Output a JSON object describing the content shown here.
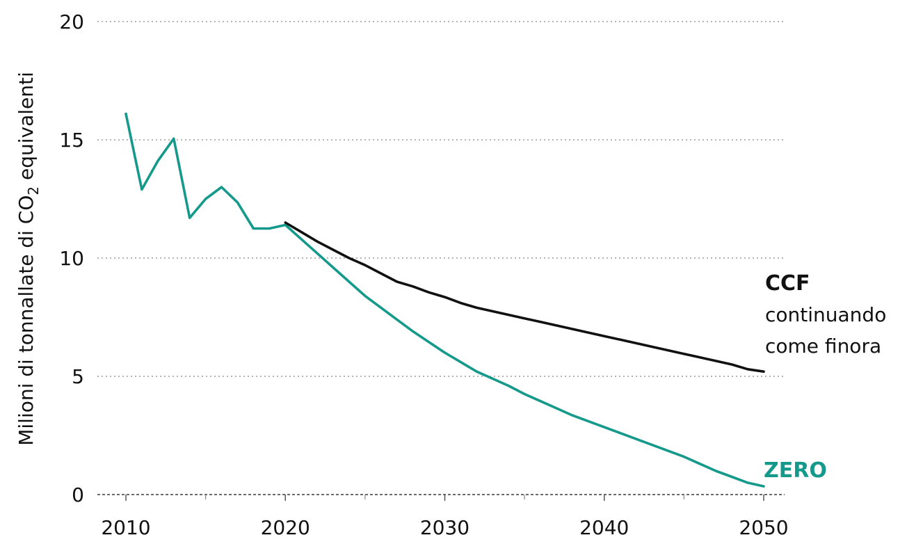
{
  "chart_data": {
    "type": "line",
    "ylabel_pre": "Milioni di tonnallate di CO",
    "ylabel_sub": "2",
    "ylabel_post": " equivalenti",
    "xlabel": "",
    "xlim": [
      2010,
      2050
    ],
    "ylim": [
      0,
      20
    ],
    "x_ticks": [
      2010,
      2020,
      2030,
      2040,
      2050
    ],
    "x_minor_ticks": [
      2015,
      2025,
      2035,
      2045
    ],
    "y_ticks": [
      0,
      5,
      10,
      15,
      20
    ],
    "grid": "horizontal dotted",
    "series": [
      {
        "name": "CCF",
        "description_lines": [
          "continuando",
          "come finora"
        ],
        "color": "#111111",
        "x": [
          2020,
          2021,
          2022,
          2023,
          2024,
          2025,
          2026,
          2027,
          2028,
          2029,
          2030,
          2031,
          2032,
          2033,
          2034,
          2035,
          2036,
          2037,
          2038,
          2039,
          2040,
          2041,
          2042,
          2043,
          2044,
          2045,
          2046,
          2047,
          2048,
          2049,
          2050
        ],
        "values": [
          11.5,
          11.1,
          10.7,
          10.35,
          10.0,
          9.7,
          9.35,
          9.0,
          8.8,
          8.55,
          8.35,
          8.1,
          7.9,
          7.75,
          7.6,
          7.45,
          7.3,
          7.15,
          7.0,
          6.85,
          6.7,
          6.55,
          6.4,
          6.25,
          6.1,
          5.95,
          5.8,
          5.65,
          5.5,
          5.3,
          5.2
        ]
      },
      {
        "name": "ZERO",
        "color": "#14998a",
        "x": [
          2010,
          2011,
          2012,
          2013,
          2014,
          2015,
          2016,
          2017,
          2018,
          2019,
          2020,
          2021,
          2022,
          2023,
          2024,
          2025,
          2026,
          2027,
          2028,
          2029,
          2030,
          2031,
          2032,
          2033,
          2034,
          2035,
          2036,
          2037,
          2038,
          2039,
          2040,
          2041,
          2042,
          2043,
          2044,
          2045,
          2046,
          2047,
          2048,
          2049,
          2050
        ],
        "values": [
          16.1,
          12.9,
          14.1,
          15.05,
          11.7,
          12.5,
          13.0,
          12.35,
          11.25,
          11.25,
          11.4,
          10.8,
          10.2,
          9.6,
          9.0,
          8.4,
          7.9,
          7.4,
          6.9,
          6.45,
          6.0,
          5.6,
          5.2,
          4.9,
          4.6,
          4.25,
          3.95,
          3.65,
          3.35,
          3.1,
          2.85,
          2.6,
          2.35,
          2.1,
          1.85,
          1.6,
          1.3,
          1.0,
          0.75,
          0.5,
          0.35
        ]
      }
    ]
  }
}
